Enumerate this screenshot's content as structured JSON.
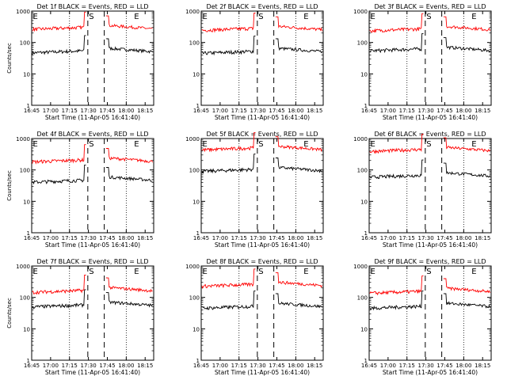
{
  "chart_data": [
    {
      "type": "line",
      "title": "Det 1f BLACK = Events, RED = LLD",
      "ylabel": "Counts/sec",
      "xlabel": "Start Time (11-Apr-05 16:41:40)",
      "yscale": "log",
      "ylim": [
        1,
        1000
      ],
      "yticks": [
        1,
        10,
        100,
        1000
      ],
      "ytick_labels": [
        "1",
        "10",
        "100",
        "1000"
      ],
      "xticks": [
        "16:45",
        "17:00",
        "17:15",
        "17:30",
        "17:45",
        "18:00",
        "18:15"
      ],
      "markers": [
        "E",
        "S",
        "E"
      ],
      "series": [
        {
          "name": "Events",
          "color": "#000000",
          "before": 52,
          "after": 60
        },
        {
          "name": "LLD",
          "color": "#ff0000",
          "before": 290,
          "after": 320
        }
      ]
    },
    {
      "type": "line",
      "title": "Det 2f BLACK = Events, RED = LLD",
      "ylabel": "",
      "xlabel": "Start Time (11-Apr-05 16:41:40)",
      "yscale": "log",
      "ylim": [
        1,
        1000
      ],
      "yticks": [
        1,
        10,
        100,
        1000
      ],
      "ytick_labels": [
        "1",
        "10",
        "100",
        "1000"
      ],
      "xticks": [
        "16:45",
        "17:00",
        "17:15",
        "17:30",
        "17:45",
        "18:00",
        "18:15"
      ],
      "markers": [
        "E",
        "S",
        "E"
      ],
      "series": [
        {
          "name": "Events",
          "color": "#000000",
          "before": 50,
          "after": 60
        },
        {
          "name": "LLD",
          "color": "#ff0000",
          "before": 270,
          "after": 300
        }
      ]
    },
    {
      "type": "line",
      "title": "Det 3f BLACK = Events, RED = LLD",
      "ylabel": "",
      "xlabel": "Start Time (11-Apr-05 16:41:40)",
      "yscale": "log",
      "ylim": [
        1,
        1000
      ],
      "yticks": [
        1,
        10,
        100,
        1000
      ],
      "ytick_labels": [
        "1",
        "10",
        "100",
        "1000"
      ],
      "xticks": [
        "16:45",
        "17:00",
        "17:15",
        "17:30",
        "17:45",
        "18:00",
        "18:15"
      ],
      "markers": [
        "E",
        "S",
        "E"
      ],
      "series": [
        {
          "name": "Events",
          "color": "#000000",
          "before": 60,
          "after": 65
        },
        {
          "name": "LLD",
          "color": "#ff0000",
          "before": 260,
          "after": 300
        }
      ]
    },
    {
      "type": "line",
      "title": "Det 4f BLACK = Events, RED = LLD",
      "ylabel": "Counts/sec",
      "xlabel": "Start Time (11-Apr-05 16:41:40)",
      "yscale": "log",
      "ylim": [
        1,
        1000
      ],
      "yticks": [
        1,
        10,
        100,
        1000
      ],
      "ytick_labels": [
        "1",
        "10",
        "100",
        "1000"
      ],
      "xticks": [
        "16:45",
        "17:00",
        "17:15",
        "17:30",
        "17:45",
        "18:00",
        "18:15"
      ],
      "markers": [
        "E",
        "S",
        "E"
      ],
      "series": [
        {
          "name": "Events",
          "color": "#000000",
          "before": 45,
          "after": 55
        },
        {
          "name": "LLD",
          "color": "#ff0000",
          "before": 200,
          "after": 220
        }
      ]
    },
    {
      "type": "line",
      "title": "Det 5f BLACK = Events, RED = LLD",
      "ylabel": "",
      "xlabel": "Start Time (11-Apr-05 16:41:40)",
      "yscale": "log",
      "ylim": [
        1,
        1000
      ],
      "yticks": [
        1,
        10,
        100,
        1000
      ],
      "ytick_labels": [
        "1",
        "10",
        "100",
        "1000"
      ],
      "xticks": [
        "16:45",
        "17:00",
        "17:15",
        "17:30",
        "17:45",
        "18:00",
        "18:15"
      ],
      "markers": [
        "E",
        "S",
        "E"
      ],
      "series": [
        {
          "name": "Events",
          "color": "#000000",
          "before": 100,
          "after": 110
        },
        {
          "name": "LLD",
          "color": "#ff0000",
          "before": 480,
          "after": 520
        }
      ]
    },
    {
      "type": "line",
      "title": "Det 6f BLACK = Events, RED = LLD",
      "ylabel": "",
      "xlabel": "Start Time (11-Apr-05 16:41:40)",
      "yscale": "log",
      "ylim": [
        1,
        1000
      ],
      "yticks": [
        1,
        10,
        100,
        1000
      ],
      "ytick_labels": [
        "1",
        "10",
        "100",
        "1000"
      ],
      "xticks": [
        "16:45",
        "17:00",
        "17:15",
        "17:30",
        "17:45",
        "18:00",
        "18:15"
      ],
      "markers": [
        "E",
        "S",
        "E"
      ],
      "series": [
        {
          "name": "Events",
          "color": "#000000",
          "before": 65,
          "after": 75
        },
        {
          "name": "LLD",
          "color": "#ff0000",
          "before": 430,
          "after": 480
        }
      ]
    },
    {
      "type": "line",
      "title": "Det 7f BLACK = Events, RED = LLD",
      "ylabel": "Counts/sec",
      "xlabel": "Start Time (11-Apr-05 16:41:40)",
      "yscale": "log",
      "ylim": [
        1,
        1000
      ],
      "yticks": [
        1,
        10,
        100,
        1000
      ],
      "ytick_labels": [
        "1",
        "10",
        "100",
        "1000"
      ],
      "xticks": [
        "16:45",
        "17:00",
        "17:15",
        "17:30",
        "17:45",
        "18:00",
        "18:15"
      ],
      "markers": [
        "E",
        "S",
        "E"
      ],
      "series": [
        {
          "name": "Events",
          "color": "#000000",
          "before": 55,
          "after": 65
        },
        {
          "name": "LLD",
          "color": "#ff0000",
          "before": 160,
          "after": 190
        }
      ]
    },
    {
      "type": "line",
      "title": "Det 8f BLACK = Events, RED = LLD",
      "ylabel": "",
      "xlabel": "Start Time (11-Apr-05 16:41:40)",
      "yscale": "log",
      "ylim": [
        1,
        1000
      ],
      "yticks": [
        1,
        10,
        100,
        1000
      ],
      "ytick_labels": [
        "1",
        "10",
        "100",
        "1000"
      ],
      "xticks": [
        "16:45",
        "17:00",
        "17:15",
        "17:30",
        "17:45",
        "18:00",
        "18:15"
      ],
      "markers": [
        "E",
        "S",
        "E"
      ],
      "series": [
        {
          "name": "Events",
          "color": "#000000",
          "before": 50,
          "after": 60
        },
        {
          "name": "LLD",
          "color": "#ff0000",
          "before": 250,
          "after": 280
        }
      ]
    },
    {
      "type": "line",
      "title": "Det 9f BLACK = Events, RED = LLD",
      "ylabel": "",
      "xlabel": "Start Time (11-Apr-05 16:41:40)",
      "yscale": "log",
      "ylim": [
        1,
        1000
      ],
      "yticks": [
        1,
        10,
        100,
        1000
      ],
      "ytick_labels": [
        "1",
        "10",
        "100",
        "1000"
      ],
      "xticks": [
        "16:45",
        "17:00",
        "17:15",
        "17:30",
        "17:45",
        "18:00",
        "18:15"
      ],
      "markers": [
        "E",
        "S",
        "E"
      ],
      "series": [
        {
          "name": "Events",
          "color": "#000000",
          "before": 50,
          "after": 60
        },
        {
          "name": "LLD",
          "color": "#ff0000",
          "before": 150,
          "after": 180
        }
      ]
    }
  ]
}
